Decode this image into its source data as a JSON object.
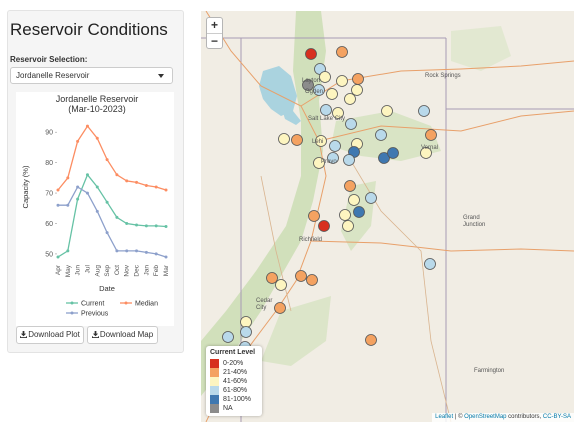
{
  "sidebar": {
    "title": "Reservoir Conditions",
    "selection_label": "Reservoir Selection:",
    "selected_reservoir": "Jordanelle Reservoir",
    "download_plot_label": "Download Plot",
    "download_map_label": "Download Map"
  },
  "chart_data": {
    "type": "line",
    "title": "Jordanelle Reservoir (Mar-10-2023)",
    "title_line1": "Jordanelle Reservoir",
    "title_line2": "(Mar-10-2023)",
    "xlabel": "Date",
    "ylabel": "Capacity (%)",
    "categories": [
      "Apr",
      "May",
      "Jun",
      "Jul",
      "Aug",
      "Sep",
      "Oct",
      "Nov",
      "Dec",
      "Jan",
      "Feb",
      "Mar"
    ],
    "ylim": [
      48,
      95
    ],
    "yticks": [
      50,
      60,
      70,
      80,
      90
    ],
    "series": [
      {
        "name": "Current",
        "color": "#66c2a5",
        "values": [
          49,
          51,
          68,
          76,
          72,
          67,
          62,
          60,
          59.5,
          59.2,
          59.2,
          59
        ]
      },
      {
        "name": "Median",
        "color": "#fc8d62",
        "values": [
          71,
          75,
          87,
          92,
          88,
          81,
          76,
          74,
          73.5,
          72.5,
          72,
          71
        ]
      },
      {
        "name": "Previous",
        "color": "#8da0cb",
        "values": [
          66,
          66,
          72,
          70,
          64,
          57,
          51,
          51,
          51,
          50.5,
          50,
          49
        ]
      }
    ],
    "legend_position": "bottom"
  },
  "map": {
    "zoom_in": "+",
    "zoom_out": "−",
    "legend_title": "Current Level",
    "legend": [
      {
        "label": "0-20%",
        "color": "#d7301f"
      },
      {
        "label": "21-40%",
        "color": "#f4a261"
      },
      {
        "label": "41-60%",
        "color": "#fdf5c0"
      },
      {
        "label": "61-80%",
        "color": "#b9d9ea"
      },
      {
        "label": "81-100%",
        "color": "#3f78b0"
      },
      {
        "label": "NA",
        "color": "#8c8c8c"
      }
    ],
    "place_labels": [
      {
        "name": "Rock Springs"
      },
      {
        "name": "Salt Lake City"
      },
      {
        "name": "Layton"
      },
      {
        "name": "Ogden"
      },
      {
        "name": "Provo"
      },
      {
        "name": "Lehi"
      },
      {
        "name": "Vernal"
      },
      {
        "name": "Richfield"
      },
      {
        "name": "Grand Junction"
      },
      {
        "name": "Cedar City"
      },
      {
        "name": "Farmington"
      }
    ],
    "attribution": {
      "leaflet": "Leaflet",
      "sep": " | © ",
      "osm": "OpenStreetMap",
      "middle": " contributors, ",
      "license": "CC-BY-SA"
    }
  }
}
